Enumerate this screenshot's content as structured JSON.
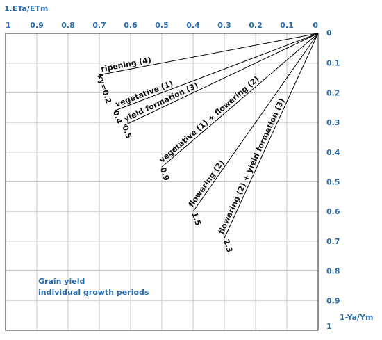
{
  "chart_data": {
    "type": "line",
    "x_axis_title": "1.ETa/ETm",
    "y_axis_title": "1-Ya/Ym",
    "xlim": [
      0,
      1
    ],
    "ylim": [
      0,
      1
    ],
    "x_reversed": true,
    "y_reversed": true,
    "x_ticks": [
      "0",
      "0.1",
      "0.2",
      "0.3",
      "0.4",
      "0.5",
      "0.6",
      "0.7",
      "0.8",
      "0.9",
      "1"
    ],
    "y_ticks": [
      "0",
      "0.1",
      "0.2",
      "0.3",
      "0.4",
      "0.5",
      "0.6",
      "0.7",
      "0.8",
      "0.9",
      "1"
    ],
    "grid": true,
    "annotation_lines": [
      "Grain yield",
      "individual growth periods"
    ],
    "series": [
      {
        "name": "ripening (4)",
        "ky_label": "ky=0.2",
        "ky": 0.2,
        "x": [
          0,
          0.7
        ],
        "y": [
          0,
          0.14
        ]
      },
      {
        "name": "vegetative (1)",
        "ky_label": "0.4",
        "ky": 0.4,
        "x": [
          0,
          0.65
        ],
        "y": [
          0,
          0.26
        ]
      },
      {
        "name": "yield formation (3)",
        "ky_label": "0.5",
        "ky": 0.5,
        "x": [
          0,
          0.62
        ],
        "y": [
          0,
          0.31
        ]
      },
      {
        "name": "vegetative (1) + flowering (2)",
        "ky_label": "0.9",
        "ky": 0.9,
        "x": [
          0,
          0.5
        ],
        "y": [
          0,
          0.45
        ]
      },
      {
        "name": "flowering (2)",
        "ky_label": "1.5",
        "ky": 1.5,
        "x": [
          0,
          0.4
        ],
        "y": [
          0,
          0.6
        ]
      },
      {
        "name": "flowering (2) + yield formation (3)",
        "ky_label": "2.3",
        "ky": 2.3,
        "x": [
          0,
          0.3
        ],
        "y": [
          0,
          0.69
        ]
      }
    ],
    "colors": {
      "axis_text": "#2a6db3",
      "grid": "#c8c8c8",
      "frame": "#222222",
      "series_line": "#000000"
    }
  }
}
